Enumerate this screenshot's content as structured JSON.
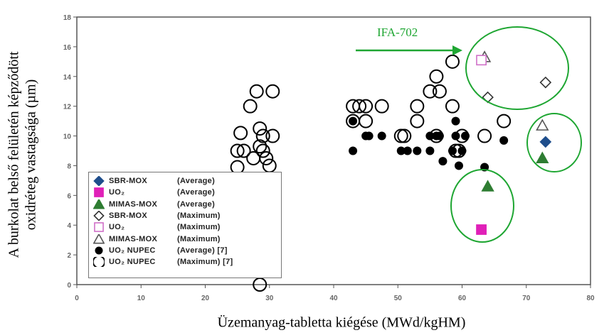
{
  "chart_data": {
    "type": "scatter",
    "xlabel": "Üzemanyag-tabletta kiégése (MWd/kgHM)",
    "ylabel_line1": "A burkolat belső felületén képződött",
    "ylabel_line2": "oxidréteg vastagsága (µm)",
    "xlim": [
      0,
      80
    ],
    "ylim": [
      0,
      18
    ],
    "xticks": [
      "0",
      "10",
      "20",
      "30",
      "40",
      "50",
      "60",
      "70",
      "80"
    ],
    "yticks": [
      "0",
      "2",
      "4",
      "6",
      "8",
      "10",
      "12",
      "14",
      "16",
      "18"
    ],
    "grid": false,
    "legend_position": "bottom-left",
    "annotation": "IFA-702",
    "series": [
      {
        "name": "SBR-MOX",
        "stat": "(Average)",
        "marker": "diamond-filled",
        "color": "#1f4e8c",
        "points": [
          [
            73,
            9.6
          ]
        ]
      },
      {
        "name": "UO₂",
        "stat": "(Average)",
        "marker": "square-filled",
        "color": "#e020b8",
        "points": [
          [
            63,
            3.7
          ]
        ]
      },
      {
        "name": "MIMAS-MOX",
        "stat": "(Average)",
        "marker": "triangle-filled",
        "color": "#2e7d32",
        "points": [
          [
            64,
            6.6
          ],
          [
            72.5,
            8.5
          ]
        ]
      },
      {
        "name": "SBR-MOX",
        "stat": "(Maximum)",
        "marker": "diamond-open",
        "color": "#333333",
        "points": [
          [
            64,
            12.6
          ],
          [
            73,
            13.6
          ]
        ]
      },
      {
        "name": "UO₂",
        "stat": "(Maximum)",
        "marker": "square-open",
        "color": "#d070c8",
        "points": [
          [
            63,
            15.1
          ]
        ]
      },
      {
        "name": "MIMAS-MOX",
        "stat": "(Maximum)",
        "marker": "triangle-open",
        "color": "#2e7d32",
        "points": [
          [
            63.5,
            15.3
          ],
          [
            72.5,
            10.7
          ]
        ]
      },
      {
        "name": "UO₂ NUPEC",
        "stat": "(Average) [7]",
        "marker": "circle-filled",
        "color": "#000000",
        "points": [
          [
            43,
            9
          ],
          [
            43,
            11
          ],
          [
            45,
            10
          ],
          [
            45.5,
            10
          ],
          [
            47.5,
            10
          ],
          [
            50.5,
            9
          ],
          [
            51.5,
            9
          ],
          [
            53,
            9
          ],
          [
            55,
            9
          ],
          [
            55,
            10
          ],
          [
            56,
            10
          ],
          [
            56.5,
            10
          ],
          [
            57,
            8.3
          ],
          [
            58.5,
            9
          ],
          [
            59,
            10
          ],
          [
            59,
            11
          ],
          [
            59.5,
            8
          ],
          [
            60,
            9
          ],
          [
            60.5,
            10
          ],
          [
            63.5,
            7.9
          ],
          [
            66.5,
            9.7
          ]
        ]
      },
      {
        "name": "UO₂ NUPEC",
        "stat": "(Maximum) [7]",
        "marker": "circle-open",
        "color": "#000000",
        "points": [
          [
            25,
            7.9
          ],
          [
            25,
            9
          ],
          [
            25.5,
            10.2
          ],
          [
            26,
            9
          ],
          [
            27,
            12
          ],
          [
            27.5,
            8.5
          ],
          [
            28,
            13
          ],
          [
            28.5,
            9.3
          ],
          [
            28.5,
            10.5
          ],
          [
            29,
            9
          ],
          [
            29,
            10
          ],
          [
            29.5,
            8.5
          ],
          [
            30,
            8
          ],
          [
            30.5,
            13
          ],
          [
            30.5,
            10
          ],
          [
            28.5,
            0
          ],
          [
            43,
            12
          ],
          [
            43,
            11
          ],
          [
            44,
            12
          ],
          [
            45,
            12
          ],
          [
            45,
            11
          ],
          [
            47.5,
            12
          ],
          [
            50.5,
            10
          ],
          [
            51,
            10
          ],
          [
            53,
            12
          ],
          [
            53,
            11
          ],
          [
            55,
            13
          ],
          [
            56,
            14
          ],
          [
            56.5,
            13
          ],
          [
            58.5,
            15
          ],
          [
            58.5,
            12
          ],
          [
            59,
            9
          ],
          [
            60,
            10
          ],
          [
            63.5,
            10
          ],
          [
            66.5,
            11
          ],
          [
            56,
            10
          ],
          [
            59.5,
            9
          ]
        ]
      }
    ]
  }
}
